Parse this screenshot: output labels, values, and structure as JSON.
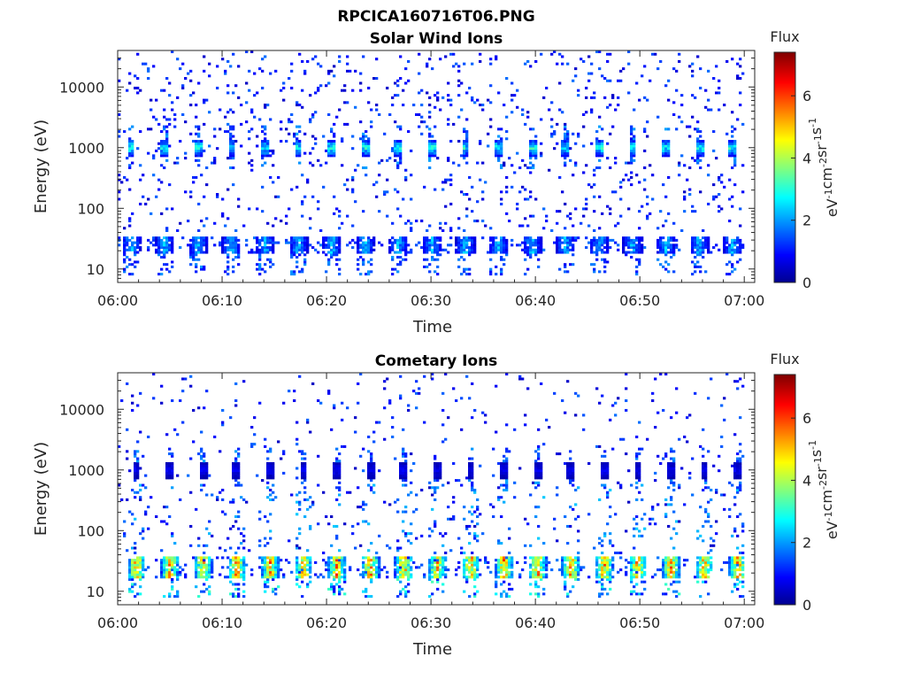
{
  "figure": {
    "title": "RPCICA160716T06.PNG"
  },
  "colormap": {
    "name": "jet",
    "stops": [
      "#00008f",
      "#0000ff",
      "#00ffff",
      "#ffff00",
      "#ff0000",
      "#800000"
    ]
  },
  "chart_data": [
    {
      "type": "heatmap",
      "title": "Solar Wind Ions",
      "xlabel": "Time",
      "ylabel": "Energy (eV)",
      "x_ticks": [
        "06:00",
        "06:10",
        "06:20",
        "06:30",
        "06:40",
        "06:50",
        "07:00"
      ],
      "x_range_min": [
        0,
        61
      ],
      "y_scale": "log",
      "y_ticks": [
        "10",
        "100",
        "1000",
        "10000"
      ],
      "y_range_ev": [
        6,
        40000
      ],
      "colorbar": {
        "label": "Flux",
        "unit": "eV-1cm-2sr-1s-1",
        "ticks": [
          "0",
          "2",
          "4",
          "6"
        ],
        "range": [
          0,
          7.4
        ]
      },
      "features": {
        "sweep_period_min": 3.2,
        "sweep_centers_min": [
          1.3,
          4.5,
          7.7,
          10.9,
          14.1,
          17.3,
          20.5,
          23.7,
          26.9,
          30.1,
          33.3,
          36.5,
          39.7,
          42.9,
          46.1,
          49.3,
          52.5,
          55.7,
          58.9
        ],
        "beam_energy_ev": 1000,
        "beam_peak_flux": 3.3,
        "low_energy_band_ev": [
          18,
          35
        ],
        "low_energy_band_peak_flux": 2.4
      }
    },
    {
      "type": "heatmap",
      "title": "Cometary Ions",
      "xlabel": "Time",
      "ylabel": "Energy (eV)",
      "x_ticks": [
        "06:00",
        "06:10",
        "06:20",
        "06:30",
        "06:40",
        "06:50",
        "07:00"
      ],
      "x_range_min": [
        0,
        61
      ],
      "y_scale": "log",
      "y_ticks": [
        "10",
        "100",
        "1000",
        "10000"
      ],
      "y_range_ev": [
        6,
        40000
      ],
      "colorbar": {
        "label": "Flux",
        "unit": "eV-1cm-2sr-1s-1",
        "ticks": [
          "0",
          "2",
          "4",
          "6"
        ],
        "range": [
          0,
          7.4
        ]
      },
      "features": {
        "sweep_period_min": 3.2,
        "sweep_centers_min": [
          1.8,
          5.0,
          8.2,
          11.4,
          14.6,
          17.8,
          21.0,
          24.2,
          27.4,
          30.6,
          33.8,
          37.0,
          40.2,
          43.4,
          46.6,
          49.8,
          53.0,
          56.2,
          59.4
        ],
        "beam_energy_ev": 1000,
        "beam_peak_flux": 0.9,
        "low_energy_band_ev": [
          16,
          38
        ],
        "low_energy_band_peak_flux": 5.6
      }
    }
  ]
}
